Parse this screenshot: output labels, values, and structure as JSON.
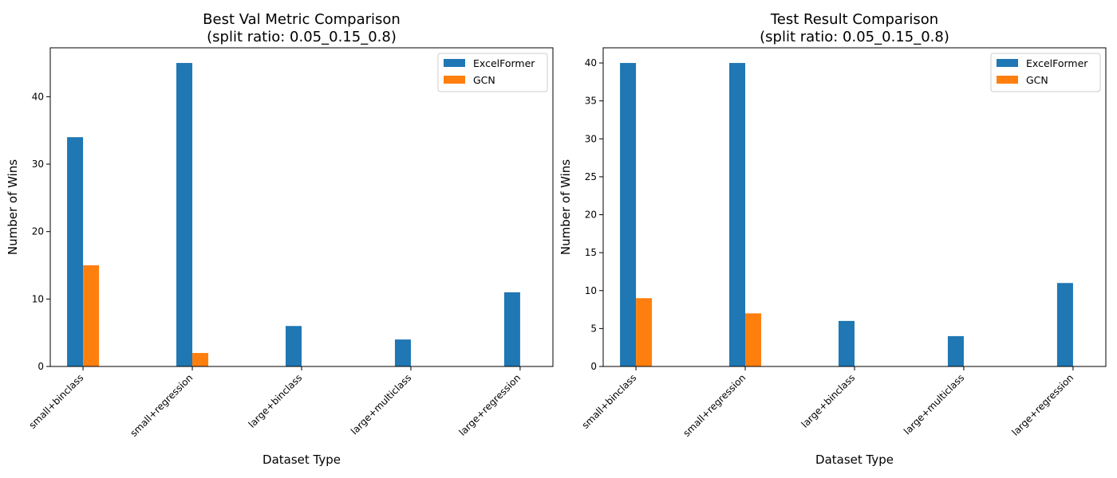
{
  "chart_data": [
    {
      "type": "bar",
      "title_line1": "Best Val Metric Comparison",
      "title_line2": "(split ratio: 0.05_0.15_0.8)",
      "xlabel": "Dataset Type",
      "ylabel": "Number of Wins",
      "categories": [
        "small+binclass",
        "small+regression",
        "large+binclass",
        "large+multiclass",
        "large+regression"
      ],
      "series": [
        {
          "name": "ExcelFormer",
          "color": "#1f77b4",
          "values": [
            34,
            45,
            6,
            4,
            11
          ]
        },
        {
          "name": "GCN",
          "color": "#ff7f0e",
          "values": [
            15,
            2,
            0,
            0,
            0
          ]
        }
      ],
      "ylim": [
        0,
        47.25
      ],
      "yticks": [
        0,
        10,
        20,
        30,
        40
      ],
      "legend": "top-right",
      "grid": false
    },
    {
      "type": "bar",
      "title_line1": "Test Result Comparison",
      "title_line2": "(split ratio: 0.05_0.15_0.8)",
      "xlabel": "Dataset Type",
      "ylabel": "Number of Wins",
      "categories": [
        "small+binclass",
        "small+regression",
        "large+binclass",
        "large+multiclass",
        "large+regression"
      ],
      "series": [
        {
          "name": "ExcelFormer",
          "color": "#1f77b4",
          "values": [
            40,
            40,
            6,
            4,
            11
          ]
        },
        {
          "name": "GCN",
          "color": "#ff7f0e",
          "values": [
            9,
            7,
            0,
            0,
            0
          ]
        }
      ],
      "ylim": [
        0,
        42
      ],
      "yticks": [
        0,
        5,
        10,
        15,
        20,
        25,
        30,
        35,
        40
      ],
      "legend": "top-right",
      "grid": false
    }
  ]
}
